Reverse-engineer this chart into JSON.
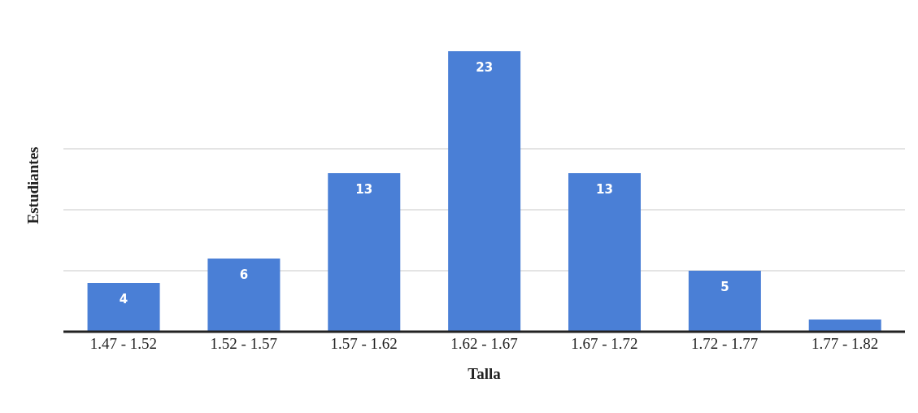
{
  "chart_data": {
    "type": "bar",
    "xlabel": "Talla",
    "ylabel": "Estudiantes",
    "categories": [
      "1.47 - 1.52",
      "1.52 - 1.57",
      "1.57 - 1.62",
      "1.62 - 1.67",
      "1.67 - 1.72",
      "1.72 - 1.77",
      "1.77 - 1.82"
    ],
    "values": [
      4,
      6,
      13,
      23,
      13,
      5,
      1
    ],
    "value_labels": [
      "4",
      "6",
      "13",
      "23",
      "13",
      "5",
      null
    ],
    "color": "#4a7fd6",
    "yticks": [
      {
        "value": 5,
        "label": null
      },
      {
        "value": 10,
        "label": null
      },
      {
        "value": 15,
        "label": null
      }
    ],
    "tick_labels": "x",
    "grid": "y"
  }
}
